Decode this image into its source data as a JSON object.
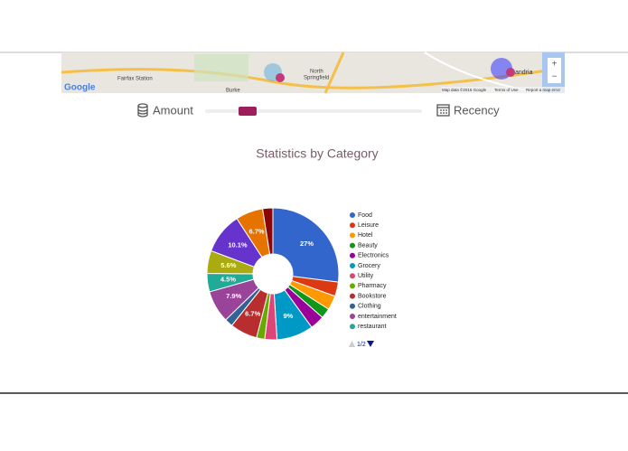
{
  "map": {
    "logo": "Google",
    "places": [
      "Fairfax Station",
      "North",
      "Springfield",
      "Burke",
      "andria"
    ],
    "attribution": "Map data ©2016 Google",
    "terms": "Terms of Use",
    "report": "Report a map error",
    "zoom_in": "+",
    "zoom_out": "−"
  },
  "controls": {
    "amount": "Amount",
    "recency": "Recency"
  },
  "chart_data": {
    "type": "donut",
    "title": "Statistics by Category",
    "categories": [
      "Food",
      "Leisure",
      "Hotel",
      "Beauty",
      "Electronics",
      "Grocery",
      "Utility",
      "Pharmacy",
      "Bookstore",
      "Clothing",
      "entertainment",
      "restaurant",
      null,
      null,
      null,
      null
    ],
    "values": [
      27,
      3.5,
      3.5,
      2.5,
      3.5,
      9,
      3,
      2,
      6.7,
      2,
      7.9,
      4.5,
      5.6,
      10.1,
      6.7,
      2.5
    ],
    "value_labels": [
      "27%",
      null,
      null,
      null,
      null,
      "9%",
      null,
      null,
      "6.7%",
      null,
      "7.9%",
      "4.5%",
      "5.6%",
      "10.1%",
      "6.7%",
      null
    ],
    "colors": [
      "#3366cc",
      "#dc3912",
      "#ff9900",
      "#109618",
      "#990099",
      "#0099c6",
      "#dd4477",
      "#66aa00",
      "#b82e2e",
      "#316395",
      "#994499",
      "#22aa99",
      "#aaaa11",
      "#6633cc",
      "#e67300",
      "#8b0707"
    ],
    "legend_page": "1/2"
  }
}
